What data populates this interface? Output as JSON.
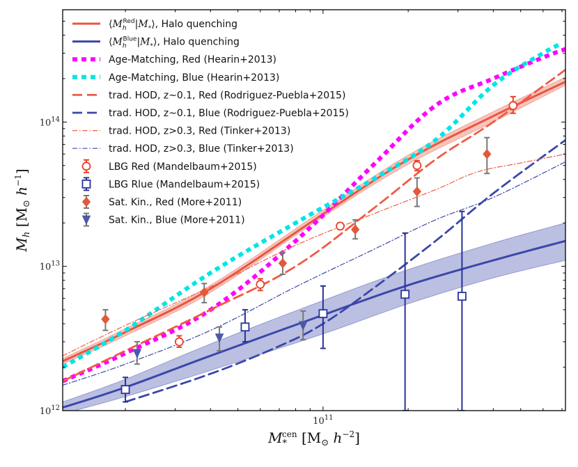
{
  "chart_data": {
    "type": "line",
    "title": "",
    "xlabel": "M_*^cen [M_⊙ h^-2]",
    "ylabel": "M_h [M_⊙ h^-1]",
    "xscale": "log",
    "yscale": "log",
    "xlim": [
      12000000000,
      720000000000
    ],
    "ylim": [
      1000000000000,
      600000000000000
    ],
    "legend_position": "top-left",
    "x_ticks": [
      {
        "value": 100000000000,
        "label": "10^11"
      }
    ],
    "y_ticks": [
      {
        "value": 1000000000000,
        "label": "10^12"
      },
      {
        "value": 10000000000000,
        "label": "10^13"
      },
      {
        "value": 100000000000000,
        "label": "10^14"
      }
    ],
    "series": [
      {
        "name": "⟨M_h^Red|M_*⟩, Halo quenching",
        "kind": "band-line",
        "color": "#e8563f",
        "x": [
          12000000000,
          20000000000,
          40000000000,
          100000000000,
          200000000000,
          400000000000,
          720000000000
        ],
        "y": [
          2200000000000,
          3500000000000,
          7000000000000,
          23000000000000,
          55000000000000,
          110000000000000,
          190000000000000
        ],
        "lower": [
          2100000000000,
          3300000000000,
          6600000000000,
          22000000000000,
          51000000000000,
          100000000000000,
          180000000000000
        ],
        "upper": [
          2300000000000,
          3700000000000,
          7400000000000,
          24500000000000,
          59000000000000,
          118000000000000,
          205000000000000
        ]
      },
      {
        "name": "⟨M_h^Blue|M_*⟩, Halo quenching",
        "kind": "band-line",
        "color": "#3b47a8",
        "x": [
          12000000000,
          20000000000,
          40000000000,
          100000000000,
          200000000000,
          400000000000,
          720000000000
        ],
        "y": [
          1050000000000,
          1450000000000,
          2400000000000,
          4600000000000,
          7400000000000,
          11000000000000,
          15000000000000
        ],
        "lower": [
          950000000000,
          1250000000000,
          1900000000000,
          3400000000000,
          5500000000000,
          8300000000000,
          11000000000000
        ],
        "upper": [
          1150000000000,
          1650000000000,
          2900000000000,
          5800000000000,
          9500000000000,
          14500000000000,
          20000000000000
        ]
      },
      {
        "name": "Age-Matching, Red (Hearin+2013)",
        "kind": "line",
        "style": "dotted",
        "color": "#ff00ff",
        "x": [
          12000000000,
          20000000000,
          40000000000,
          80000000000,
          150000000000,
          250000000000,
          400000000000,
          600000000000,
          720000000000
        ],
        "y": [
          1600000000000,
          2500000000000,
          5000000000000,
          15000000000000,
          50000000000000,
          130000000000000,
          200000000000000,
          280000000000000,
          320000000000000
        ]
      },
      {
        "name": "Age-Matching, Blue (Hearin+2013)",
        "kind": "line",
        "style": "dotted",
        "color": "#00e5e5",
        "x": [
          12000000000,
          20000000000,
          40000000000,
          80000000000,
          150000000000,
          250000000000,
          400000000000,
          600000000000,
          700000000000
        ],
        "y": [
          2000000000000,
          3600000000000,
          9000000000000,
          20000000000000,
          40000000000000,
          75000000000000,
          180000000000000,
          300000000000000,
          350000000000000
        ]
      },
      {
        "name": "trad. HOD, z~0.1, Red (Rodriguez-Puebla+2015)",
        "kind": "line",
        "style": "dashed",
        "color": "#ef5b45",
        "x": [
          12000000000,
          20000000000,
          40000000000,
          80000000000,
          150000000000,
          250000000000,
          400000000000,
          720000000000
        ],
        "y": [
          1600000000000,
          2600000000000,
          5000000000000,
          10000000000000,
          25000000000000,
          55000000000000,
          100000000000000,
          230000000000000
        ]
      },
      {
        "name": "trad. HOD, z~0.1, Blue (Rodriguez-Puebla+2015)",
        "kind": "line",
        "style": "dashed",
        "color": "#3b47a8",
        "x": [
          20000000000,
          40000000000,
          70000000000,
          100000000000,
          150000000000,
          250000000000,
          400000000000,
          720000000000
        ],
        "y": [
          1150000000000,
          1800000000000,
          2800000000000,
          4000000000000,
          7000000000000,
          15000000000000,
          32000000000000,
          75000000000000
        ]
      },
      {
        "name": "trad. HOD, z>0.3, Red (Tinker+2013)",
        "kind": "line",
        "style": "dashdot",
        "color": "#ef5b45",
        "x": [
          12000000000,
          20000000000,
          40000000000,
          80000000000,
          150000000000,
          250000000000,
          350000000000,
          500000000000,
          720000000000
        ],
        "y": [
          2400000000000,
          3900000000000,
          7200000000000,
          14000000000000,
          23000000000000,
          34000000000000,
          45000000000000,
          52000000000000,
          60000000000000
        ]
      },
      {
        "name": "trad. HOD, z>0.3, Blue (Tinker+2013)",
        "kind": "line",
        "style": "dashdot",
        "color": "#3b47a8",
        "x": [
          12000000000,
          20000000000,
          40000000000,
          80000000000,
          150000000000,
          250000000000,
          400000000000,
          720000000000
        ],
        "y": [
          1500000000000,
          2100000000000,
          3600000000000,
          7200000000000,
          13000000000000,
          21000000000000,
          30000000000000,
          53000000000000
        ]
      },
      {
        "name": "LBG Red (Mandelbaum+2015)",
        "kind": "points",
        "marker": "circle-open",
        "color": "#e8402a",
        "x": [
          31000000000,
          60000000000,
          115000000000,
          215000000000,
          470000000000
        ],
        "y": [
          3000000000000,
          7500000000000,
          19000000000000,
          50000000000000,
          130000000000000
        ],
        "yerr_low": [
          2750000000000,
          6800000000000,
          18000000000000,
          46000000000000,
          115000000000000
        ],
        "yerr_high": [
          3300000000000,
          8200000000000,
          20000000000000,
          54000000000000,
          150000000000000
        ]
      },
      {
        "name": "LBG Rlue (Mandelbaum+2015)",
        "kind": "points",
        "marker": "square-open",
        "color": "#27339a",
        "x": [
          20000000000,
          53000000000,
          100000000000,
          195000000000,
          310000000000
        ],
        "y": [
          1400000000000,
          3800000000000,
          4700000000000,
          6400000000000,
          6200000000000
        ],
        "yerr_low": [
          1150000000000,
          3000000000000,
          2700000000000,
          1000000000000,
          1000000000000
        ],
        "yerr_high": [
          1700000000000,
          5000000000000,
          7300000000000,
          17000000000000,
          24000000000000
        ]
      },
      {
        "name": "Sat. Kin., Red (More+2011)",
        "kind": "points",
        "marker": "diamond",
        "color": "#e2583a",
        "x": [
          17000000000,
          38000000000,
          72000000000,
          130000000000,
          215000000000,
          380000000000
        ],
        "y": [
          4300000000000,
          6600000000000,
          10500000000000,
          18000000000000,
          33000000000000,
          60000000000000
        ],
        "yerr_low": [
          3600000000000,
          5600000000000,
          8800000000000,
          15500000000000,
          26000000000000,
          44000000000000
        ],
        "yerr_high": [
          5000000000000,
          7600000000000,
          12500000000000,
          21000000000000,
          41000000000000,
          78000000000000
        ]
      },
      {
        "name": "Sat. Kin., Blue (More+2011)",
        "kind": "points",
        "marker": "triangle-down",
        "color": "#4a5aa8",
        "x": [
          22000000000,
          43000000000,
          85000000000
        ],
        "y": [
          2500000000000,
          3200000000000,
          3900000000000
        ],
        "yerr_low": [
          2100000000000,
          2600000000000,
          3100000000000
        ],
        "yerr_high": [
          3000000000000,
          3800000000000,
          4900000000000
        ]
      }
    ]
  }
}
